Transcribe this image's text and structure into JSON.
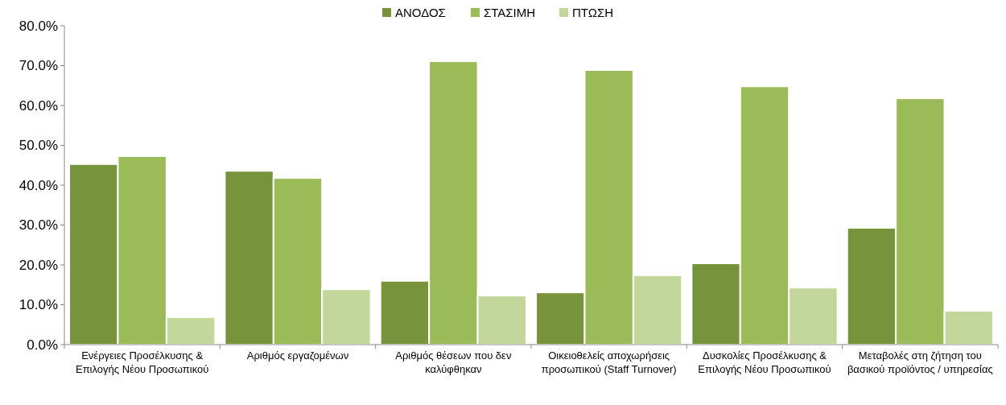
{
  "chart_data": {
    "type": "bar",
    "categories": [
      "Ενέργειες Προσέλκυσης & Επιλογής Νέου Προσωπικού",
      "Αριθμός εργαζομένων",
      "Αριθμός θέσεων που δεν καλύφθηκαν",
      "Οικειοθελείς αποχωρήσεις προσωπικού (Staff Turnover)",
      "Δυσκολίες Προσέλκυσης & Επιλογής Νέου Προσωπικού",
      "Μεταβολές στη ζήτηση του βασικού προϊόντος / υπηρεσίας"
    ],
    "series": [
      {
        "name": "ΑΝΟΔΟΣ",
        "color": "#77933c",
        "values": [
          45.3,
          43.6,
          16.0,
          13.1,
          20.4,
          29.3
        ]
      },
      {
        "name": "ΣΤΑΣΙΜΗ",
        "color": "#9bbb59",
        "values": [
          47.3,
          41.8,
          71.1,
          68.9,
          64.8,
          61.8
        ]
      },
      {
        "name": "ΠΤΩΣΗ",
        "color": "#c3d69b",
        "values": [
          6.9,
          13.9,
          12.3,
          17.4,
          14.3,
          8.5
        ]
      }
    ],
    "ylim": [
      0,
      80
    ],
    "yticks": [
      {
        "value": 0,
        "label": "0.0%"
      },
      {
        "value": 10,
        "label": "10.0%"
      },
      {
        "value": 20,
        "label": "20.0%"
      },
      {
        "value": 30,
        "label": "30.0%"
      },
      {
        "value": 40,
        "label": "40.0%"
      },
      {
        "value": 50,
        "label": "50.0%"
      },
      {
        "value": 60,
        "label": "60.0%"
      },
      {
        "value": 70,
        "label": "70.0%"
      },
      {
        "value": 80,
        "label": "80.0%"
      }
    ],
    "grid": false,
    "legend": "top"
  }
}
